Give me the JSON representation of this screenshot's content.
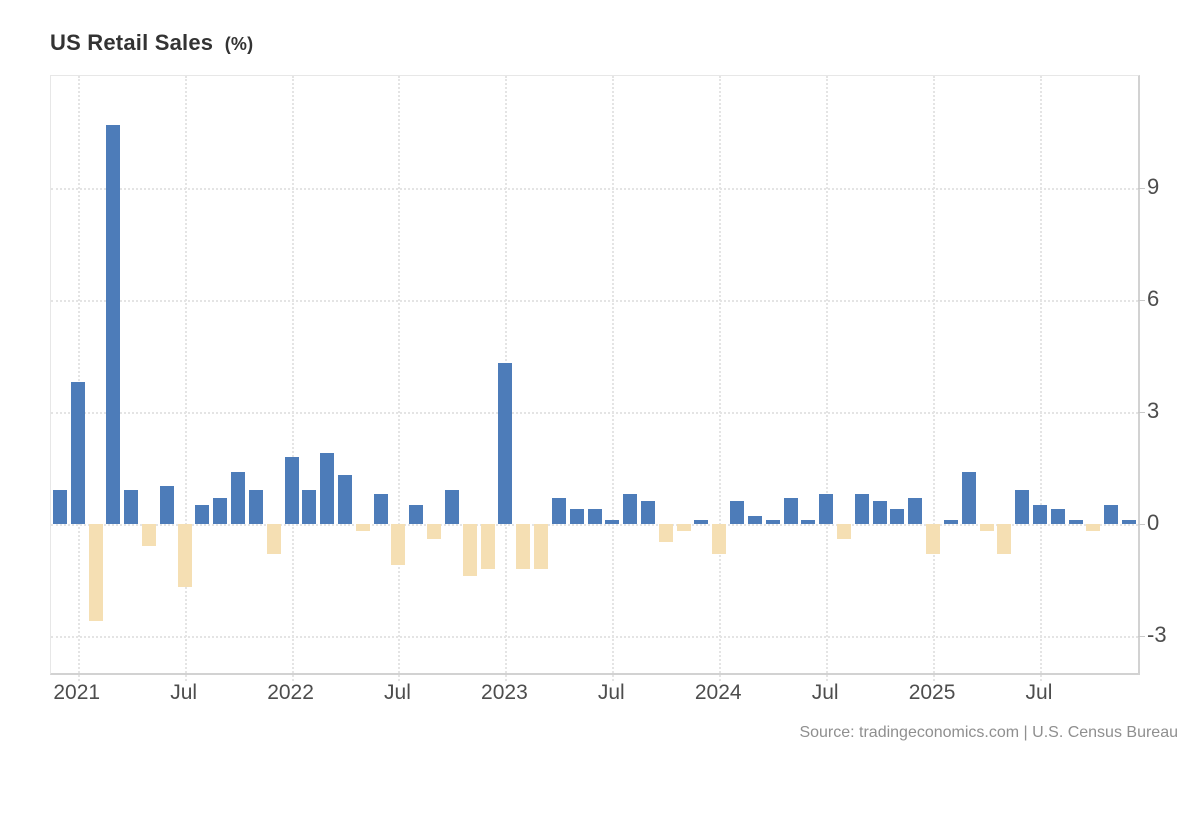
{
  "title": {
    "main": "US Retail Sales",
    "unit": "(%)"
  },
  "source_credit": "Source: tradingeconomics.com | U.S. Census Bureau",
  "colors": {
    "positive_bar": "#4d7cb9",
    "negative_bar": "#f5dfb3",
    "grid": "#e4e4e4",
    "axis": "#d2d2d2",
    "tick_label": "#4d4d4d",
    "title": "#333333",
    "source_text": "#8f8f8f",
    "background": "#ffffff"
  },
  "y_axis": {
    "tick_values": [
      9,
      6,
      3,
      0,
      -3
    ],
    "min": -4,
    "max": 12,
    "side": "right"
  },
  "x_axis": {
    "tick_labels": [
      "2021",
      "Jul",
      "2022",
      "Jul",
      "2023",
      "Jul",
      "2024",
      "Jul",
      "2025",
      "Jul"
    ],
    "tick_month_indices": [
      1,
      7,
      13,
      19,
      25,
      31,
      37,
      43,
      49,
      55
    ]
  },
  "chart_data": {
    "type": "bar",
    "title": "US Retail Sales (%)",
    "xlabel": "",
    "ylabel": "%",
    "ylim": [
      -4,
      12
    ],
    "grid": true,
    "legend": "none",
    "note": "monthly change, positive bars blue, negative bars wheat",
    "x": [
      "Dec 2020",
      "Jan 2021",
      "Feb 2021",
      "Mar 2021",
      "Apr 2021",
      "May 2021",
      "Jun 2021",
      "Jul 2021",
      "Aug 2021",
      "Sep 2021",
      "Oct 2021",
      "Nov 2021",
      "Dec 2021",
      "Jan 2022",
      "Feb 2022",
      "Mar 2022",
      "Apr 2022",
      "May 2022",
      "Jun 2022",
      "Jul 2022",
      "Aug 2022",
      "Sep 2022",
      "Oct 2022",
      "Nov 2022",
      "Dec 2022",
      "Jan 2023",
      "Feb 2023",
      "Mar 2023",
      "Apr 2023",
      "May 2023",
      "Jun 2023",
      "Jul 2023",
      "Aug 2023",
      "Sep 2023",
      "Oct 2023",
      "Nov 2023",
      "Dec 2023",
      "Jan 2024",
      "Feb 2024",
      "Mar 2024",
      "Apr 2024",
      "May 2024",
      "Jun 2024",
      "Jul 2024",
      "Aug 2024",
      "Sep 2024",
      "Oct 2024",
      "Nov 2024",
      "Dec 2024",
      "Jan 2025",
      "Feb 2025",
      "Mar 2025",
      "Apr 2025",
      "May 2025",
      "Jun 2025",
      "Jul 2025",
      "Aug 2025",
      "Sep 2025",
      "Oct 2025",
      "Nov 2025",
      "Dec 2025"
    ],
    "values": [
      0.9,
      3.8,
      -2.6,
      10.7,
      0.9,
      -0.6,
      1.0,
      -1.7,
      0.5,
      0.7,
      1.4,
      0.9,
      -0.8,
      1.8,
      0.9,
      1.9,
      1.3,
      -0.2,
      0.8,
      -1.1,
      0.5,
      -0.4,
      0.9,
      -1.4,
      -1.2,
      4.3,
      -1.2,
      -1.2,
      0.7,
      0.4,
      0.4,
      0.1,
      0.8,
      0.6,
      -0.5,
      -0.2,
      0.1,
      -0.8,
      0.6,
      0.2,
      0.1,
      0.7,
      0.1,
      0.8,
      -0.4,
      0.8,
      0.6,
      0.4,
      0.7,
      -0.8,
      0.1,
      1.4,
      -0.2,
      -0.8,
      0.9,
      0.5,
      0.4,
      0.1,
      -0.2,
      0.5,
      0.1
    ]
  }
}
